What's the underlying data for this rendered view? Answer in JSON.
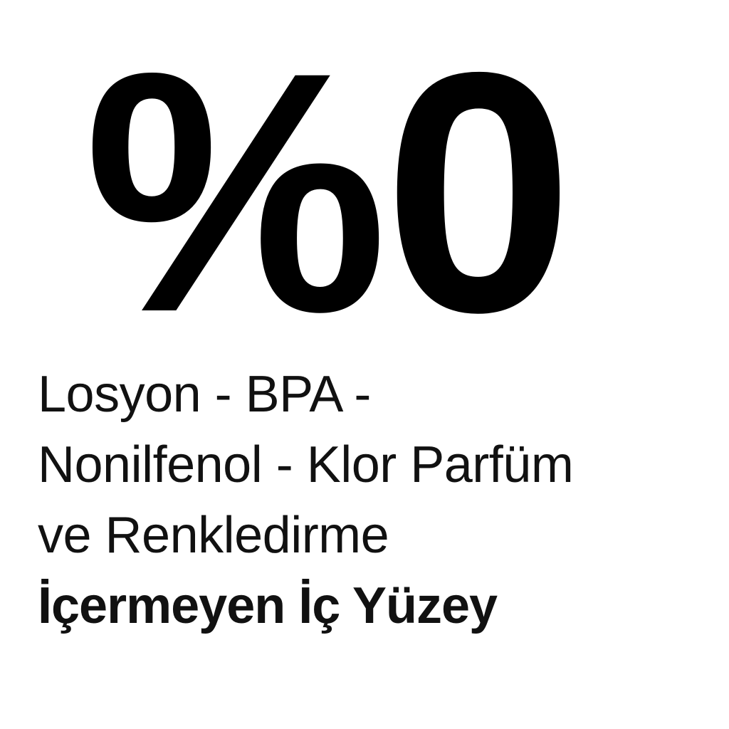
{
  "headline": "%0",
  "lines": [
    "Losyon - BPA -",
    "Nonilfenol - Klor Parfüm",
    "ve Renkledirme"
  ],
  "emphasis_line": "İçermeyen İç Yüzey",
  "colors": {
    "text": "#000000",
    "background": "#ffffff"
  }
}
